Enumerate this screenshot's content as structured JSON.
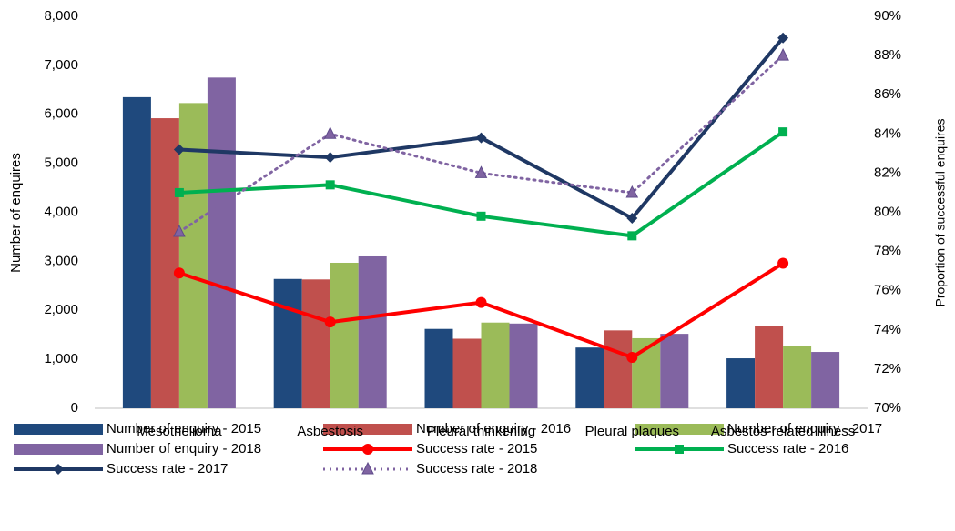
{
  "chart_data": {
    "type": "bar",
    "categories": [
      "Mesothelioma",
      "Asbestosis",
      "Pleural thinkening",
      "Pleural plaques",
      "Asbestos-related illness"
    ],
    "ylabel": "Number of enquires",
    "y2label": "Proportion of successful enquires",
    "ylim": [
      0,
      8000
    ],
    "yticks": [
      0,
      {
        "value": 1000,
        "label": "1,000"
      },
      {
        "value": 2000,
        "label": "2,000"
      },
      {
        "value": 3000,
        "label": "3,000"
      },
      {
        "value": 4000,
        "label": "4,000"
      },
      {
        "value": 5000,
        "label": "5,000"
      },
      {
        "value": 6000,
        "label": "6,000"
      },
      {
        "value": 7000,
        "label": "7,000"
      },
      {
        "value": 8000,
        "label": "8,000"
      }
    ],
    "y2lim": [
      70,
      90
    ],
    "y2ticks": [
      {
        "value": 70,
        "label": "70%"
      },
      {
        "value": 72,
        "label": "72%"
      },
      {
        "value": 74,
        "label": "74%"
      },
      {
        "value": 76,
        "label": "76%"
      },
      {
        "value": 78,
        "label": "78%"
      },
      {
        "value": 80,
        "label": "80%"
      },
      {
        "value": 82,
        "label": "82%"
      },
      {
        "value": 84,
        "label": "84%"
      },
      {
        "value": 86,
        "label": "86%"
      },
      {
        "value": 88,
        "label": "88%"
      },
      {
        "value": 90,
        "label": "90%"
      }
    ],
    "series": [
      {
        "name": "Number of enquiry - 2015",
        "type": "bar",
        "color": "#1f497d",
        "values": [
          6350,
          2640,
          1620,
          1240,
          1020
        ]
      },
      {
        "name": "Number of enquiry - 2016",
        "type": "bar",
        "color": "#c0504d",
        "values": [
          5920,
          2630,
          1420,
          1590,
          1680
        ]
      },
      {
        "name": "Number of enquiry - 2017",
        "type": "bar",
        "color": "#9bbb59",
        "values": [
          6230,
          2970,
          1750,
          1430,
          1270
        ]
      },
      {
        "name": "Number of enquiry - 2018",
        "type": "bar",
        "color": "#8064a2",
        "values": [
          6750,
          3100,
          1730,
          1520,
          1150
        ]
      },
      {
        "name": "Success rate - 2015",
        "type": "line",
        "axis": "y2",
        "color": "#ff0000",
        "marker": "circle",
        "values": [
          76.9,
          74.4,
          75.4,
          72.6,
          77.4
        ]
      },
      {
        "name": "Success rate - 2016",
        "type": "line",
        "axis": "y2",
        "color": "#00b050",
        "marker": "square",
        "values": [
          81.0,
          81.4,
          79.8,
          78.8,
          84.1
        ]
      },
      {
        "name": "Success rate - 2017",
        "type": "line",
        "axis": "y2",
        "color": "#1f3864",
        "marker": "diamond",
        "values": [
          83.2,
          82.8,
          83.8,
          79.7,
          88.9
        ]
      },
      {
        "name": "Success rate - 2018",
        "type": "line",
        "axis": "y2",
        "color": "#8064a2",
        "marker": "triangle",
        "dash": true,
        "values": [
          79.0,
          84.0,
          82.0,
          81.0,
          88.0
        ]
      }
    ]
  }
}
